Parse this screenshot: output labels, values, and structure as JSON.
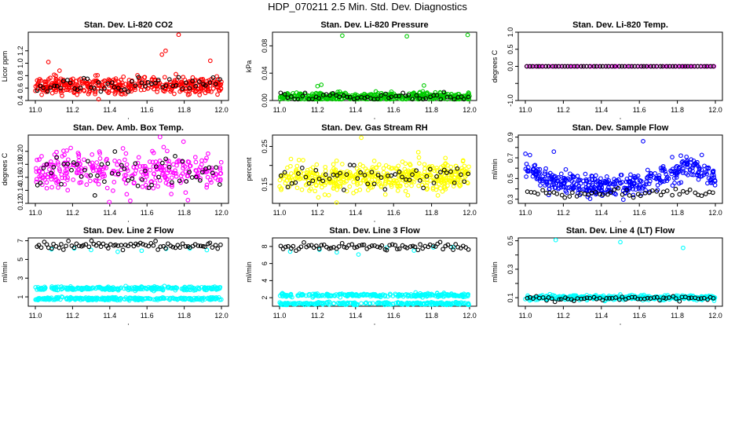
{
  "title": "HDP_070211  2.5 Min. Std. Dev. Diagnostics",
  "colors": {
    "red": "#ff0000",
    "green": "#00cc00",
    "magenta": "#ff00ff",
    "yellow": "#ffff00",
    "blue": "#0000ff",
    "cyan": "#00ffff",
    "black": "#000000"
  },
  "chart_data": [
    {
      "id": "co2",
      "type": "scatter",
      "title": "Stan. Dev. Li-820 CO2",
      "xlabel": "",
      "ylabel": "Licor ppm",
      "xlim": [
        11.0,
        12.0
      ],
      "ylim": [
        0.4,
        1.5
      ],
      "xticks": [
        "11.0",
        "11.2",
        "11.4",
        "11.6",
        "11.8",
        "12.0"
      ],
      "yticks": [
        0.4,
        0.6,
        0.8,
        1.0,
        1.2
      ],
      "ytick_labels": [
        "0.4",
        "0.6",
        "0.8",
        "1.0",
        "1.2"
      ],
      "series": [
        {
          "name": "primary",
          "color": "red",
          "base": 0.64,
          "noise": 0.07,
          "n": 420,
          "outliers": [
            [
              11.07,
              1.02
            ],
            [
              11.68,
              1.14
            ],
            [
              11.7,
              1.2
            ],
            [
              11.77,
              1.46
            ],
            [
              11.94,
              1.04
            ],
            [
              11.34,
              0.42
            ],
            [
              11.13,
              0.88
            ]
          ]
        },
        {
          "name": "reference",
          "color": "black",
          "base": 0.63,
          "noise": 0.06,
          "n": 55,
          "outliers": []
        }
      ]
    },
    {
      "id": "pressure",
      "type": "scatter",
      "title": "Stan. Dev. Li-820 Pressure",
      "xlabel": "",
      "ylabel": "kPa",
      "xlim": [
        11.0,
        12.0
      ],
      "ylim": [
        0.0,
        0.1
      ],
      "xticks": [
        "11.0",
        "11.2",
        "11.4",
        "11.6",
        "11.8",
        "12.0"
      ],
      "yticks": [
        0.0,
        0.04,
        0.08
      ],
      "ytick_labels": [
        "0.00",
        "0.04",
        "0.08"
      ],
      "series": [
        {
          "name": "primary",
          "color": "green",
          "base": 0.006,
          "noise": 0.003,
          "n": 420,
          "outliers": [
            [
              11.33,
              0.095
            ],
            [
              11.67,
              0.094
            ],
            [
              11.99,
              0.096
            ],
            [
              11.2,
              0.021
            ],
            [
              11.22,
              0.023
            ],
            [
              11.76,
              0.022
            ]
          ]
        },
        {
          "name": "reference",
          "color": "black",
          "base": 0.005,
          "noise": 0.003,
          "n": 55,
          "outliers": []
        }
      ]
    },
    {
      "id": "temp",
      "type": "scatter",
      "title": "Stan. Dev. Li-820 Temp.",
      "xlabel": "",
      "ylabel": "degrees C",
      "xlim": [
        11.0,
        12.0
      ],
      "ylim": [
        -1.0,
        1.0
      ],
      "xticks": [
        "11.0",
        "11.2",
        "11.4",
        "11.6",
        "11.8",
        "12.0"
      ],
      "yticks": [
        -1.0,
        -0.5,
        0.0,
        0.5,
        1.0
      ],
      "ytick_labels": [
        "-1.0",
        "",
        "0.0",
        "0.5",
        "1.0"
      ],
      "series": [
        {
          "name": "primary",
          "color": "magenta",
          "base": 0.0,
          "noise": 0.0,
          "n": 70,
          "outliers": []
        },
        {
          "name": "reference",
          "color": "black",
          "base": 0.0,
          "noise": 0.0,
          "n": 60,
          "outliers": []
        }
      ]
    },
    {
      "id": "ambbox",
      "type": "scatter",
      "title": "Stan. Dev. Amb. Box Temp.",
      "xlabel": "",
      "ylabel": "degrees C",
      "xlim": [
        11.0,
        12.0
      ],
      "ylim": [
        0.12,
        0.225
      ],
      "xticks": [
        "11.0",
        "11.2",
        "11.4",
        "11.6",
        "11.8",
        "12.0"
      ],
      "yticks": [
        0.12,
        0.14,
        0.16,
        0.18,
        0.2
      ],
      "ytick_labels": [
        "0.12",
        "0.14",
        "0.16",
        "0.18",
        "0.20"
      ],
      "series": [
        {
          "name": "primary",
          "color": "magenta",
          "base": 0.17,
          "noise": 0.015,
          "n": 320,
          "outliers": [
            [
              11.67,
              0.222
            ],
            [
              11.51,
              0.124
            ],
            [
              11.82,
              0.125
            ]
          ]
        },
        {
          "name": "reference",
          "color": "black",
          "base": 0.168,
          "noise": 0.016,
          "n": 55,
          "outliers": []
        }
      ]
    },
    {
      "id": "rh",
      "type": "scatter",
      "title": "Stan. Dev. Gas Stream RH",
      "xlabel": "",
      "ylabel": "percent",
      "xlim": [
        11.0,
        12.0
      ],
      "ylim": [
        0.1,
        0.28
      ],
      "xticks": [
        "11.0",
        "11.2",
        "11.4",
        "11.6",
        "11.8",
        "12.0"
      ],
      "yticks": [
        0.15,
        0.2,
        0.25
      ],
      "ytick_labels": [
        "0.15",
        "",
        "0.25"
      ],
      "series": [
        {
          "name": "primary",
          "color": "yellow",
          "base": 0.17,
          "noise": 0.018,
          "n": 480,
          "outliers": [
            [
              11.43,
              0.273
            ],
            [
              11.3,
              0.102
            ],
            [
              11.73,
              0.235
            ]
          ]
        },
        {
          "name": "reference",
          "color": "black",
          "base": 0.168,
          "noise": 0.018,
          "n": 55,
          "outliers": []
        }
      ]
    },
    {
      "id": "sampleflow",
      "type": "scatter",
      "title": "Stan. Dev. Sample Flow",
      "xlabel": "",
      "ylabel": "ml/min",
      "xlim": [
        11.0,
        12.0
      ],
      "ylim": [
        0.26,
        0.92
      ],
      "xticks": [
        "11.0",
        "11.2",
        "11.4",
        "11.6",
        "11.8",
        "12.0"
      ],
      "yticks": [
        0.3,
        0.4,
        0.5,
        0.6,
        0.7,
        0.8,
        0.9
      ],
      "ytick_labels": [
        "0.3",
        "",
        "0.5",
        "",
        "0.7",
        "",
        "0.9"
      ],
      "series": [
        {
          "name": "primary",
          "color": "blue",
          "base": 0.44,
          "noise": 0.05,
          "n": 420,
          "trend": [
            [
              11.0,
              0.63
            ],
            [
              11.08,
              0.52
            ],
            [
              11.2,
              0.45
            ],
            [
              11.4,
              0.42
            ],
            [
              11.6,
              0.45
            ],
            [
              11.75,
              0.55
            ],
            [
              11.88,
              0.62
            ],
            [
              12.0,
              0.5
            ]
          ],
          "outliers": [
            [
              11.62,
              0.86
            ],
            [
              11.15,
              0.76
            ]
          ]
        },
        {
          "name": "reference",
          "color": "black",
          "base": 0.36,
          "noise": 0.025,
          "n": 50,
          "outliers": []
        }
      ]
    },
    {
      "id": "line2",
      "type": "scatter",
      "title": "Stan. Dev. Line 2 Flow",
      "xlabel": "",
      "ylabel": "ml/min",
      "xlim": [
        11.0,
        12.0
      ],
      "ylim": [
        0.0,
        7.3
      ],
      "xticks": [
        "11.0",
        "11.2",
        "11.4",
        "11.6",
        "11.8",
        "12.0"
      ],
      "yticks": [
        1,
        3,
        5,
        7
      ],
      "ytick_labels": [
        "1",
        "3",
        "5",
        "7"
      ],
      "series": [
        {
          "name": "band-upper",
          "color": "cyan",
          "base": 1.9,
          "noise": 0.1,
          "n": 260,
          "outliers": []
        },
        {
          "name": "band-lower",
          "color": "cyan",
          "base": 0.8,
          "noise": 0.08,
          "n": 260,
          "outliers": []
        },
        {
          "name": "cyan-high",
          "color": "cyan",
          "base": 6.0,
          "noise": 0.2,
          "n": 8,
          "outliers": []
        },
        {
          "name": "reference",
          "color": "black",
          "base": 6.5,
          "noise": 0.22,
          "n": 75,
          "outliers": []
        }
      ]
    },
    {
      "id": "line3",
      "type": "scatter",
      "title": "Stan. Dev. Line 3 Flow",
      "xlabel": "",
      "ylabel": "ml/min",
      "xlim": [
        11.0,
        12.0
      ],
      "ylim": [
        1.0,
        9.0
      ],
      "xticks": [
        "11.0",
        "11.2",
        "11.4",
        "11.6",
        "11.8",
        "12.0"
      ],
      "yticks": [
        2,
        4,
        6,
        8
      ],
      "ytick_labels": [
        "2",
        "4",
        "6",
        "8"
      ],
      "series": [
        {
          "name": "band-upper",
          "color": "cyan",
          "base": 2.3,
          "noise": 0.1,
          "n": 260,
          "outliers": []
        },
        {
          "name": "band-lower",
          "color": "cyan",
          "base": 1.3,
          "noise": 0.08,
          "n": 260,
          "outliers": []
        },
        {
          "name": "cyan-high",
          "color": "cyan",
          "base": 7.5,
          "noise": 0.25,
          "n": 8,
          "outliers": []
        },
        {
          "name": "reference",
          "color": "black",
          "base": 8.0,
          "noise": 0.22,
          "n": 75,
          "outliers": []
        }
      ]
    },
    {
      "id": "line4",
      "type": "scatter",
      "title": "Stan. Dev. Line 4 (LT) Flow",
      "xlabel": "",
      "ylabel": "ml/min",
      "xlim": [
        11.0,
        12.0
      ],
      "ylim": [
        0.04,
        0.52
      ],
      "xticks": [
        "11.0",
        "11.2",
        "11.4",
        "11.6",
        "11.8",
        "12.0"
      ],
      "yticks": [
        0.1,
        0.2,
        0.3,
        0.4,
        0.5
      ],
      "ytick_labels": [
        "0.1",
        "",
        "0.3",
        "",
        "0.5"
      ],
      "series": [
        {
          "name": "primary",
          "color": "cyan",
          "base": 0.1,
          "noise": 0.008,
          "n": 420,
          "outliers": [
            [
              11.16,
              0.505
            ],
            [
              11.5,
              0.49
            ],
            [
              11.83,
              0.45
            ]
          ]
        },
        {
          "name": "reference",
          "color": "black",
          "base": 0.095,
          "noise": 0.008,
          "n": 60,
          "outliers": []
        }
      ]
    }
  ]
}
